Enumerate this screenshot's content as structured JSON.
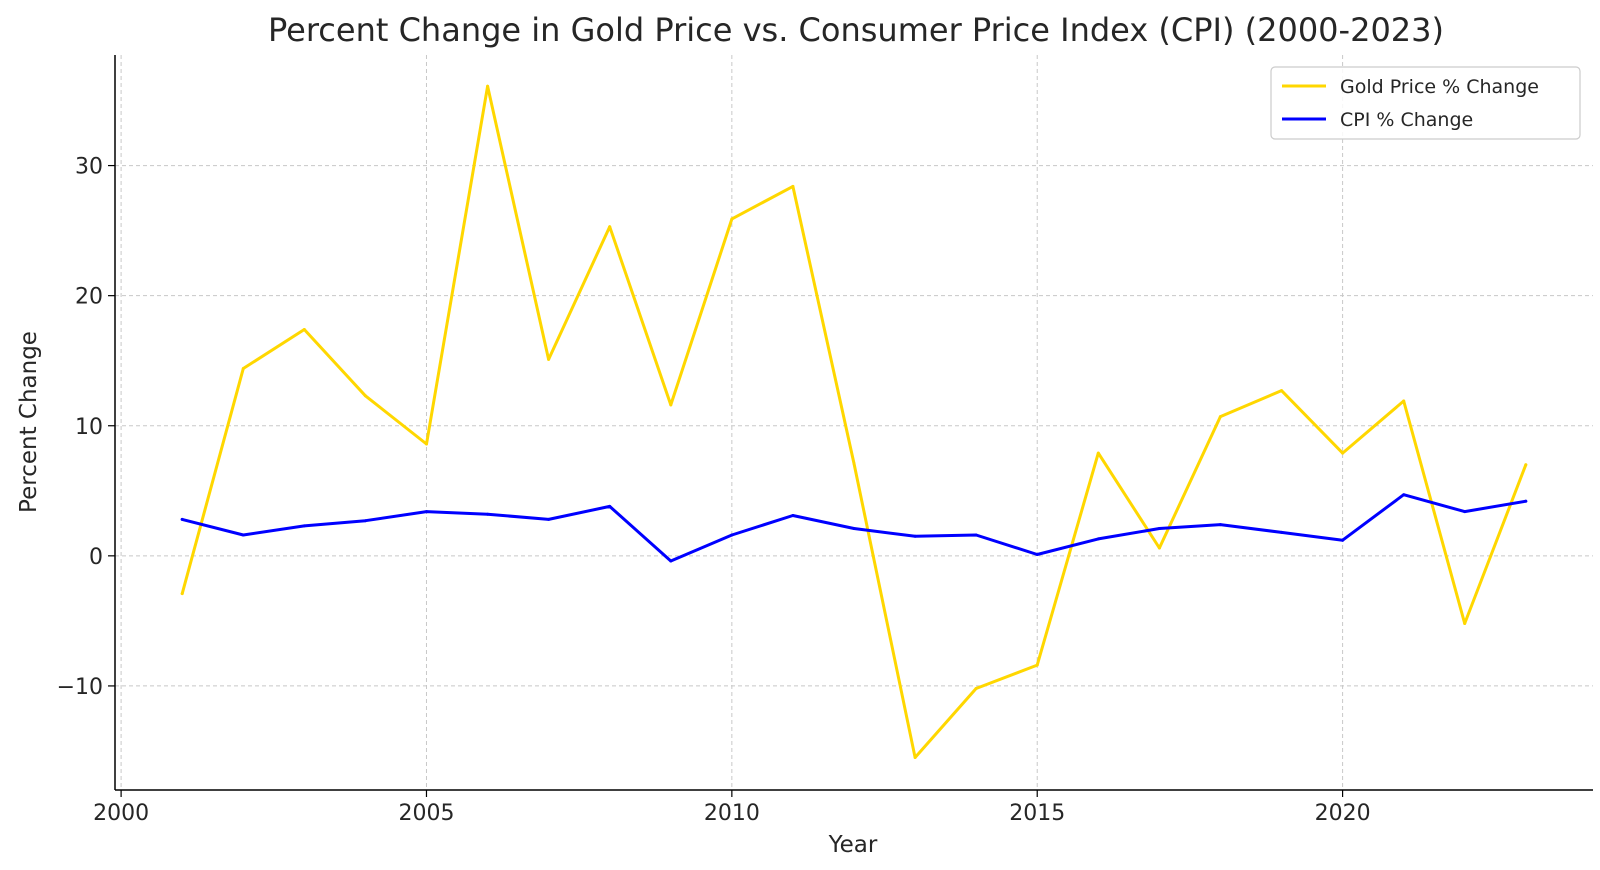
{
  "chart_data": {
    "type": "line",
    "title": "Percent Change in Gold Price vs. Consumer Price Index (CPI) (2000-2023)",
    "xlabel": "Year",
    "ylabel": "Percent Change",
    "xlim": [
      1999.9,
      2024.1
    ],
    "ylim": [
      -18,
      38.5
    ],
    "xticks": [
      2000,
      2005,
      2010,
      2015,
      2020
    ],
    "yticks": [
      -10,
      0,
      10,
      20,
      30
    ],
    "ytick_labels": [
      "−10",
      "0",
      "10",
      "20",
      "30"
    ],
    "grid": true,
    "legend_position": "top-right",
    "x": [
      2001,
      2002,
      2003,
      2004,
      2005,
      2006,
      2007,
      2008,
      2009,
      2010,
      2011,
      2012,
      2013,
      2014,
      2015,
      2016,
      2017,
      2018,
      2019,
      2020,
      2021,
      2022,
      2023
    ],
    "series": [
      {
        "name": "Gold Price % Change",
        "color": "#FFD700",
        "values": [
          -2.9,
          14.4,
          17.4,
          12.3,
          8.6,
          36.1,
          15.1,
          25.3,
          11.6,
          25.9,
          28.4,
          7.1,
          -15.5,
          -10.2,
          -8.4,
          7.9,
          0.6,
          10.7,
          12.7,
          7.9,
          11.9,
          -5.2,
          7.0
        ]
      },
      {
        "name": "CPI % Change",
        "color": "#0000FF",
        "values": [
          2.8,
          1.6,
          2.3,
          2.7,
          3.4,
          3.2,
          2.8,
          3.8,
          -0.4,
          1.6,
          3.1,
          2.1,
          1.5,
          1.6,
          0.1,
          1.3,
          2.1,
          2.4,
          1.8,
          1.2,
          4.7,
          3.4,
          4.2
        ]
      }
    ]
  }
}
